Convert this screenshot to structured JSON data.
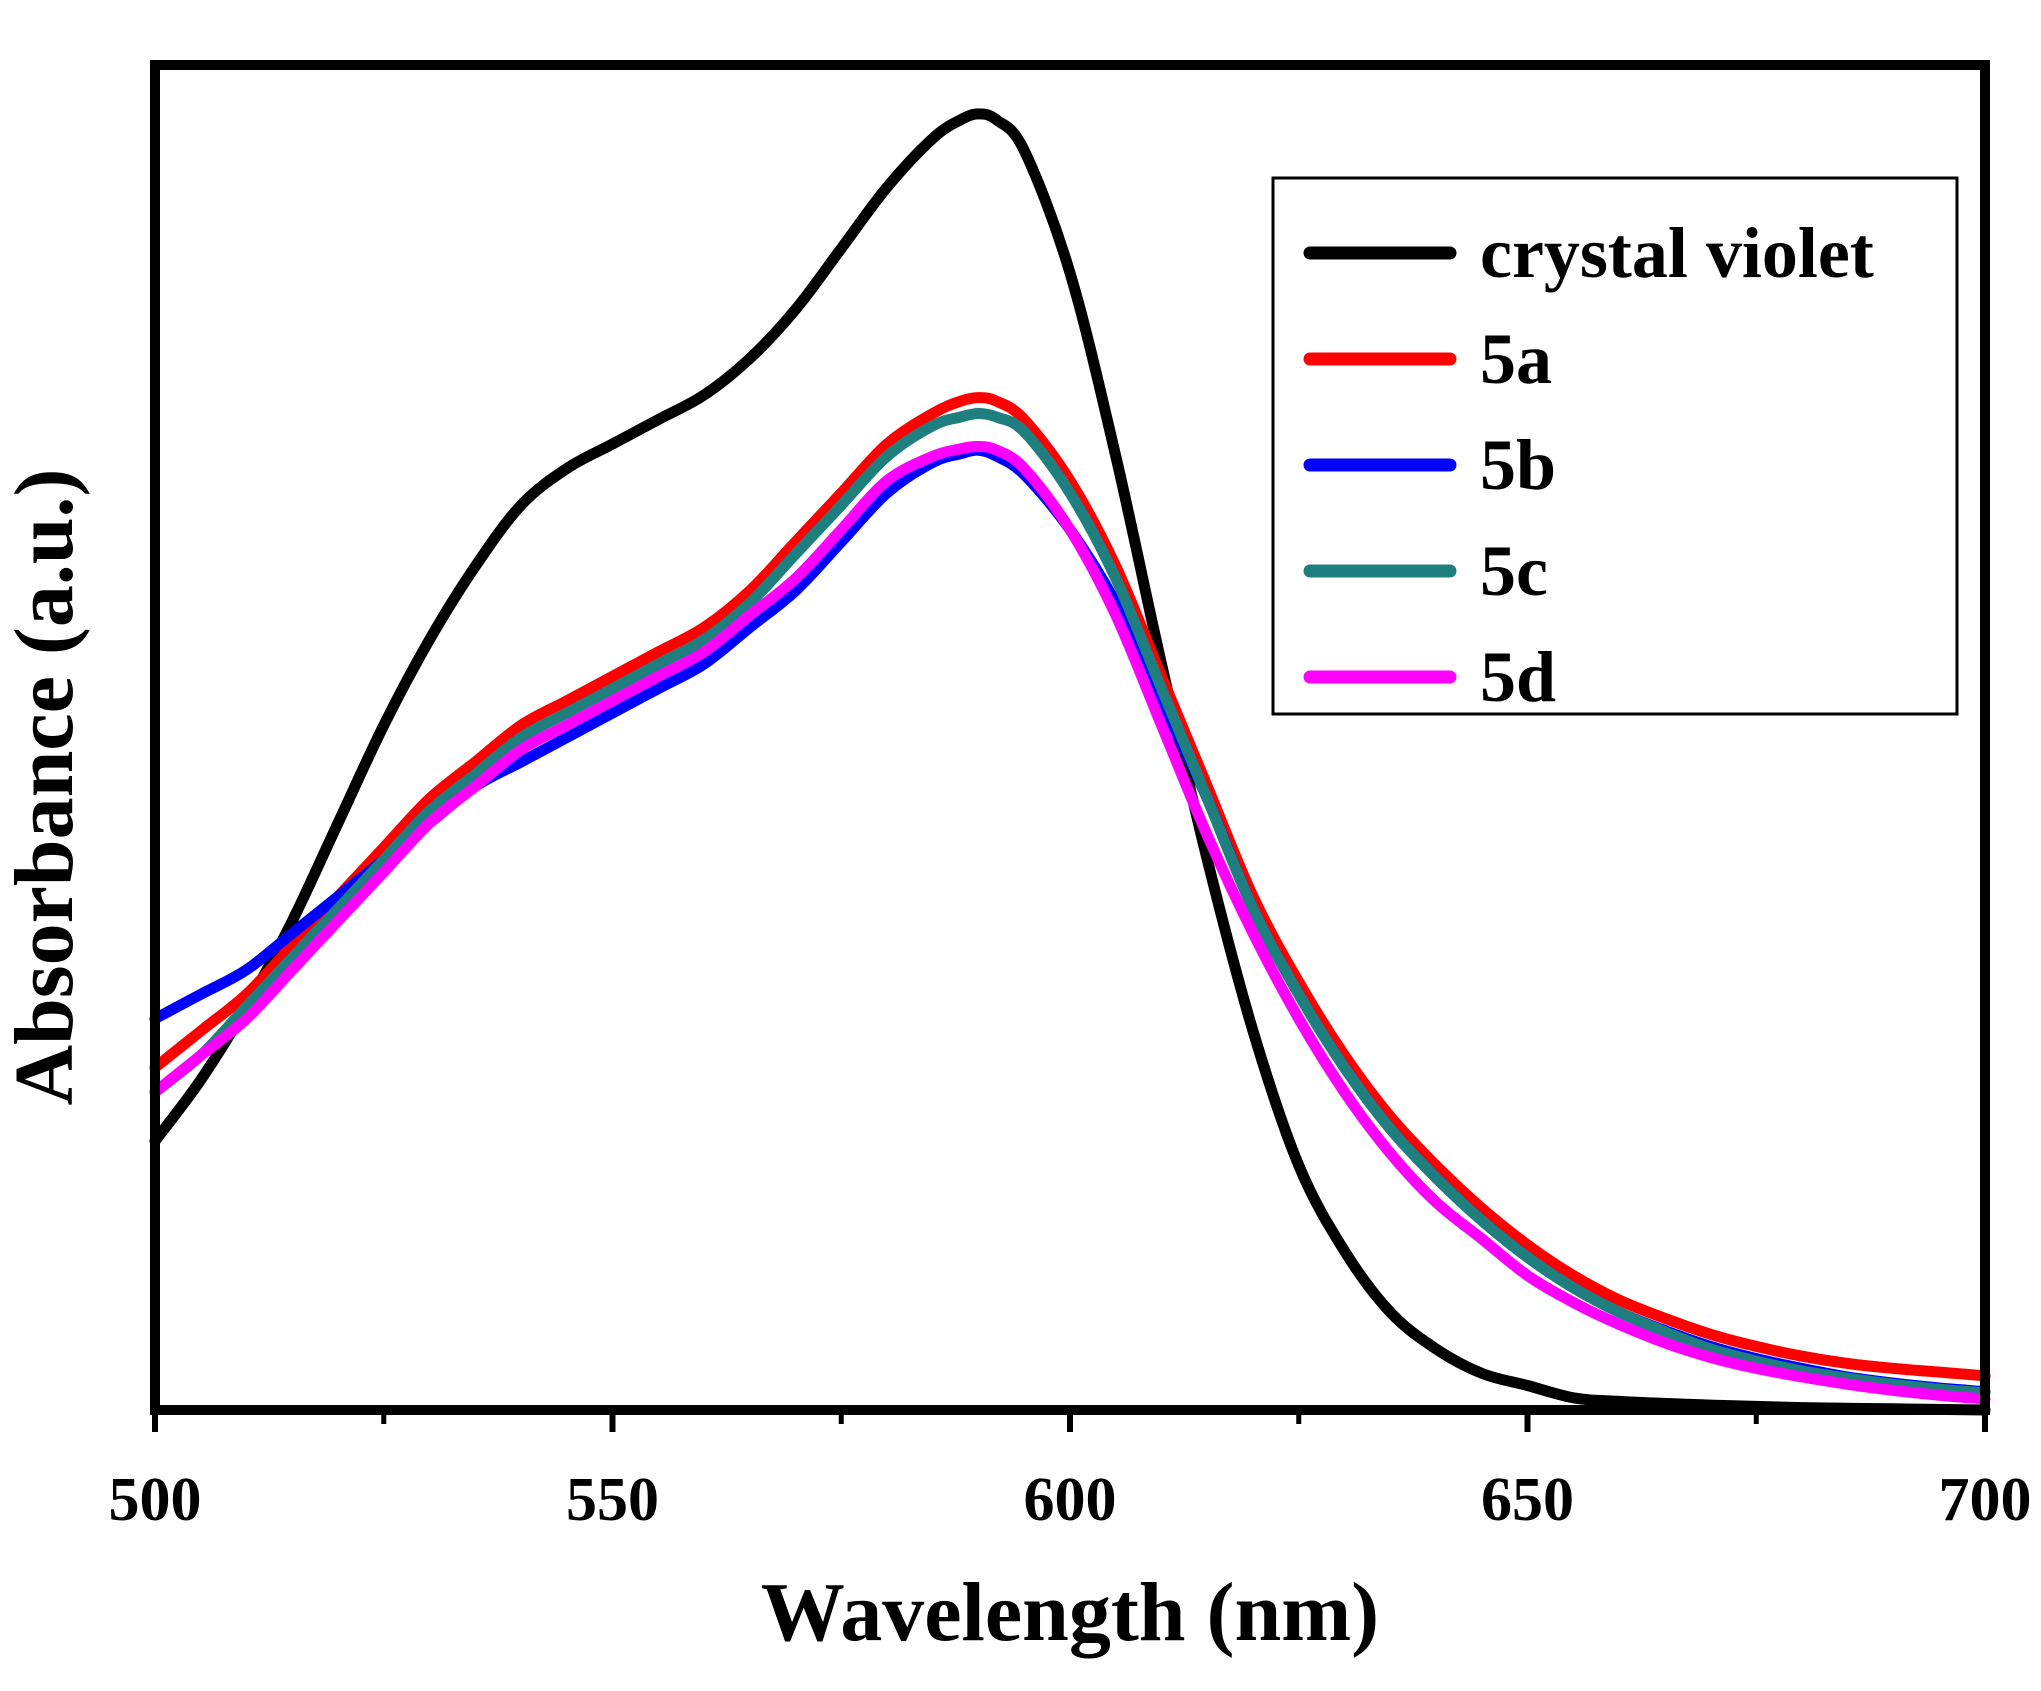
{
  "chart_data": {
    "type": "line",
    "title": "",
    "xlabel": "Wavelength (nm)",
    "ylabel": "Absorbance (a.u.)",
    "xlim": [
      500,
      700
    ],
    "ylim": [
      0,
      1.1
    ],
    "x_ticks": [
      "500",
      "550",
      "600",
      "650",
      "700"
    ],
    "y_ticks_shown": false,
    "grid": false,
    "legend_position": "top-right",
    "series": [
      {
        "name": "crystal violet",
        "color": "#000000",
        "x": [
          500,
          505,
          510,
          515,
          520,
          525,
          530,
          535,
          540,
          545,
          550,
          555,
          560,
          565,
          570,
          575,
          580,
          585,
          588,
          590,
          592,
          595,
          600,
          605,
          610,
          615,
          620,
          625,
          630,
          635,
          640,
          645,
          650,
          655,
          660,
          670,
          680,
          690,
          700
        ],
        "y": [
          0.22,
          0.27,
          0.33,
          0.4,
          0.48,
          0.56,
          0.63,
          0.69,
          0.74,
          0.77,
          0.79,
          0.81,
          0.83,
          0.86,
          0.9,
          0.95,
          1.0,
          1.04,
          1.055,
          1.06,
          1.055,
          1.03,
          0.93,
          0.78,
          0.61,
          0.45,
          0.31,
          0.2,
          0.13,
          0.08,
          0.05,
          0.03,
          0.02,
          0.01,
          0.007,
          0.004,
          0.002,
          0.001,
          0.0
        ]
      },
      {
        "name": "5a",
        "color": "#ff0000",
        "x": [
          500,
          505,
          510,
          515,
          520,
          525,
          530,
          535,
          540,
          545,
          550,
          555,
          560,
          565,
          570,
          575,
          580,
          585,
          588,
          590,
          592,
          595,
          600,
          605,
          610,
          615,
          620,
          625,
          630,
          635,
          640,
          645,
          650,
          655,
          660,
          665,
          670,
          675,
          680,
          685,
          690,
          695,
          700
        ],
        "y": [
          0.28,
          0.31,
          0.34,
          0.38,
          0.42,
          0.46,
          0.5,
          0.53,
          0.56,
          0.58,
          0.6,
          0.62,
          0.64,
          0.67,
          0.71,
          0.75,
          0.79,
          0.815,
          0.825,
          0.828,
          0.825,
          0.81,
          0.76,
          0.69,
          0.6,
          0.51,
          0.42,
          0.35,
          0.29,
          0.24,
          0.2,
          0.165,
          0.135,
          0.11,
          0.09,
          0.075,
          0.062,
          0.052,
          0.044,
          0.038,
          0.034,
          0.031,
          0.028
        ]
      },
      {
        "name": "5b",
        "color": "#0000ff",
        "x": [
          500,
          505,
          510,
          515,
          520,
          525,
          530,
          535,
          540,
          545,
          550,
          555,
          560,
          565,
          570,
          575,
          580,
          585,
          588,
          590,
          592,
          595,
          600,
          605,
          610,
          615,
          620,
          625,
          630,
          635,
          640,
          645,
          650,
          655,
          660,
          665,
          670,
          675,
          680,
          685,
          690,
          695,
          700
        ],
        "y": [
          0.32,
          0.34,
          0.36,
          0.39,
          0.42,
          0.45,
          0.48,
          0.51,
          0.53,
          0.55,
          0.57,
          0.59,
          0.61,
          0.64,
          0.67,
          0.71,
          0.75,
          0.775,
          0.782,
          0.785,
          0.78,
          0.765,
          0.72,
          0.66,
          0.58,
          0.5,
          0.41,
          0.34,
          0.28,
          0.23,
          0.19,
          0.155,
          0.125,
          0.1,
          0.08,
          0.065,
          0.052,
          0.042,
          0.034,
          0.027,
          0.022,
          0.018,
          0.015
        ]
      },
      {
        "name": "5c",
        "color": "#1f7f7f",
        "x": [
          500,
          505,
          510,
          515,
          520,
          525,
          530,
          535,
          540,
          545,
          550,
          555,
          560,
          565,
          570,
          575,
          580,
          585,
          588,
          590,
          592,
          595,
          600,
          605,
          610,
          615,
          620,
          625,
          630,
          635,
          640,
          645,
          650,
          655,
          660,
          665,
          670,
          675,
          680,
          685,
          690,
          695,
          700
        ],
        "y": [
          0.26,
          0.29,
          0.33,
          0.37,
          0.41,
          0.45,
          0.49,
          0.52,
          0.55,
          0.57,
          0.59,
          0.61,
          0.63,
          0.66,
          0.7,
          0.74,
          0.78,
          0.805,
          0.812,
          0.815,
          0.812,
          0.8,
          0.75,
          0.68,
          0.59,
          0.5,
          0.41,
          0.34,
          0.28,
          0.23,
          0.19,
          0.155,
          0.125,
          0.1,
          0.08,
          0.064,
          0.05,
          0.04,
          0.032,
          0.026,
          0.021,
          0.017,
          0.014
        ]
      },
      {
        "name": "5d",
        "color": "#ff00ff",
        "x": [
          500,
          505,
          510,
          515,
          520,
          525,
          530,
          535,
          540,
          545,
          550,
          555,
          560,
          565,
          570,
          575,
          580,
          585,
          588,
          590,
          592,
          595,
          600,
          605,
          610,
          615,
          620,
          625,
          630,
          635,
          640,
          645,
          650,
          655,
          660,
          665,
          670,
          675,
          680,
          685,
          690,
          695,
          700
        ],
        "y": [
          0.26,
          0.29,
          0.32,
          0.36,
          0.4,
          0.44,
          0.48,
          0.51,
          0.54,
          0.56,
          0.58,
          0.6,
          0.62,
          0.65,
          0.68,
          0.72,
          0.76,
          0.78,
          0.786,
          0.788,
          0.785,
          0.77,
          0.72,
          0.65,
          0.56,
          0.47,
          0.39,
          0.32,
          0.26,
          0.21,
          0.17,
          0.14,
          0.11,
          0.088,
          0.07,
          0.055,
          0.043,
          0.034,
          0.027,
          0.021,
          0.016,
          0.012,
          0.009
        ]
      }
    ]
  }
}
